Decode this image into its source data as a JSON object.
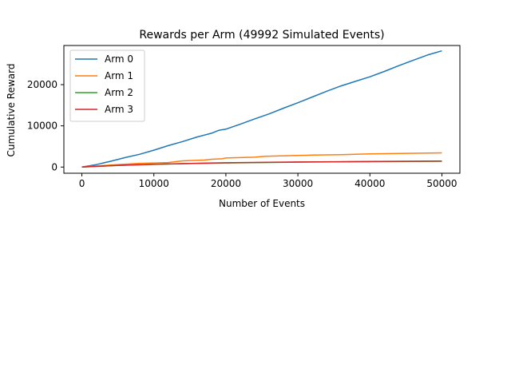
{
  "chart_data": {
    "type": "line",
    "title": "Rewards per Arm (49992 Simulated Events)",
    "xlabel": "Number of Events",
    "ylabel": "Cumulative Reward",
    "xlim": [
      -2500,
      52500
    ],
    "ylim": [
      -1500,
      29500
    ],
    "xticks": [
      0,
      10000,
      20000,
      30000,
      40000,
      50000
    ],
    "xtick_labels": [
      "0",
      "10000",
      "20000",
      "30000",
      "40000",
      "50000"
    ],
    "yticks": [
      0,
      10000,
      20000
    ],
    "ytick_labels": [
      "0",
      "10000",
      "20000"
    ],
    "grid": false,
    "legend_position": "top-left",
    "series": [
      {
        "name": "Arm 0",
        "color": "#1f77b4",
        "x": [
          0,
          2000,
          4000,
          6000,
          8000,
          10000,
          12000,
          14000,
          16000,
          18000,
          19000,
          20000,
          22000,
          24000,
          26000,
          28000,
          30000,
          32000,
          34000,
          36000,
          38000,
          40000,
          42000,
          44000,
          46000,
          48000,
          49992
        ],
        "y": [
          0,
          600,
          1400,
          2300,
          3100,
          4100,
          5200,
          6200,
          7300,
          8200,
          8900,
          9200,
          10400,
          11700,
          12900,
          14300,
          15600,
          17000,
          18400,
          19700,
          20800,
          21900,
          23200,
          24600,
          25900,
          27200,
          28200
        ]
      },
      {
        "name": "Arm 1",
        "color": "#ff7f0e",
        "x": [
          0,
          4000,
          8000,
          12000,
          13000,
          14000,
          17000,
          18000,
          19500,
          20000,
          24000,
          25500,
          30000,
          32000,
          36000,
          38000,
          40000,
          44000,
          48000,
          49992
        ],
        "y": [
          0,
          500,
          900,
          1100,
          1300,
          1500,
          1700,
          1900,
          2000,
          2200,
          2400,
          2600,
          2800,
          2900,
          3000,
          3100,
          3200,
          3300,
          3400,
          3450
        ]
      },
      {
        "name": "Arm 2",
        "color": "#2ca02c",
        "x": [
          0,
          5000,
          10000,
          15000,
          20000,
          25000,
          30000,
          35000,
          40000,
          45000,
          49992
        ],
        "y": [
          0,
          400,
          650,
          850,
          1000,
          1100,
          1200,
          1250,
          1300,
          1350,
          1400
        ]
      },
      {
        "name": "Arm 3",
        "color": "#d62728",
        "x": [
          0,
          5000,
          10000,
          15000,
          20000,
          25000,
          30000,
          35000,
          40000,
          45000,
          49992
        ],
        "y": [
          0,
          420,
          680,
          880,
          1030,
          1140,
          1230,
          1290,
          1340,
          1400,
          1450
        ]
      }
    ]
  }
}
